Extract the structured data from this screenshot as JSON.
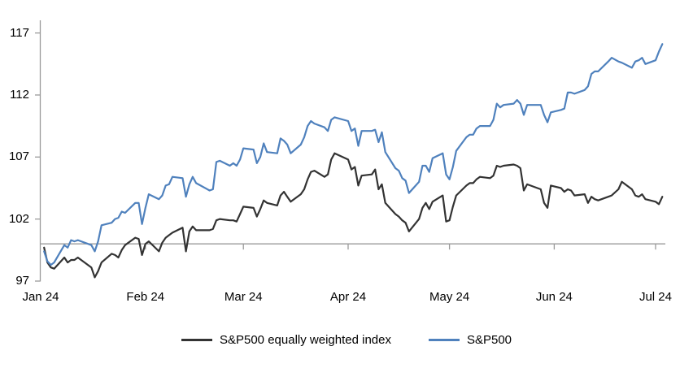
{
  "chart_data": {
    "type": "line",
    "title": "",
    "xlabel": "",
    "ylabel": "",
    "grid": false,
    "legend_position": "bottom-center",
    "axis_color": "#9a9a9a",
    "text_color": "#000000",
    "background_color": "#ffffff",
    "y_ticks": [
      97,
      102,
      107,
      112,
      117
    ],
    "ylim": [
      97,
      118
    ],
    "baseline_value": 100,
    "x_tick_labels": [
      "Jan 24",
      "Feb 24",
      "Mar 24",
      "Apr 24",
      "May 24",
      "Jun 24",
      "Jul 24"
    ],
    "x_tick_dates": [
      "2024-01-01",
      "2024-02-01",
      "2024-03-01",
      "2024-04-01",
      "2024-05-01",
      "2024-06-01",
      "2024-07-01"
    ],
    "x": [
      "2024-01-02",
      "2024-01-03",
      "2024-01-04",
      "2024-01-05",
      "2024-01-08",
      "2024-01-09",
      "2024-01-10",
      "2024-01-11",
      "2024-01-12",
      "2024-01-16",
      "2024-01-17",
      "2024-01-18",
      "2024-01-19",
      "2024-01-22",
      "2024-01-23",
      "2024-01-24",
      "2024-01-25",
      "2024-01-26",
      "2024-01-29",
      "2024-01-30",
      "2024-01-31",
      "2024-02-01",
      "2024-02-02",
      "2024-02-05",
      "2024-02-06",
      "2024-02-07",
      "2024-02-08",
      "2024-02-09",
      "2024-02-12",
      "2024-02-13",
      "2024-02-14",
      "2024-02-15",
      "2024-02-16",
      "2024-02-20",
      "2024-02-21",
      "2024-02-22",
      "2024-02-23",
      "2024-02-26",
      "2024-02-27",
      "2024-02-28",
      "2024-02-29",
      "2024-03-01",
      "2024-03-04",
      "2024-03-05",
      "2024-03-06",
      "2024-03-07",
      "2024-03-08",
      "2024-03-11",
      "2024-03-12",
      "2024-03-13",
      "2024-03-14",
      "2024-03-15",
      "2024-03-18",
      "2024-03-19",
      "2024-03-20",
      "2024-03-21",
      "2024-03-22",
      "2024-03-25",
      "2024-03-26",
      "2024-03-27",
      "2024-03-28",
      "2024-04-01",
      "2024-04-02",
      "2024-04-03",
      "2024-04-04",
      "2024-04-05",
      "2024-04-08",
      "2024-04-09",
      "2024-04-10",
      "2024-04-11",
      "2024-04-12",
      "2024-04-15",
      "2024-04-16",
      "2024-04-17",
      "2024-04-18",
      "2024-04-19",
      "2024-04-22",
      "2024-04-23",
      "2024-04-24",
      "2024-04-25",
      "2024-04-26",
      "2024-04-29",
      "2024-04-30",
      "2024-05-01",
      "2024-05-02",
      "2024-05-03",
      "2024-05-06",
      "2024-05-07",
      "2024-05-08",
      "2024-05-09",
      "2024-05-10",
      "2024-05-13",
      "2024-05-14",
      "2024-05-15",
      "2024-05-16",
      "2024-05-17",
      "2024-05-20",
      "2024-05-21",
      "2024-05-22",
      "2024-05-23",
      "2024-05-24",
      "2024-05-28",
      "2024-05-29",
      "2024-05-30",
      "2024-05-31",
      "2024-06-03",
      "2024-06-04",
      "2024-06-05",
      "2024-06-06",
      "2024-06-07",
      "2024-06-10",
      "2024-06-11",
      "2024-06-12",
      "2024-06-13",
      "2024-06-14",
      "2024-06-17",
      "2024-06-18",
      "2024-06-20",
      "2024-06-21",
      "2024-06-24",
      "2024-06-25",
      "2024-06-26",
      "2024-06-27",
      "2024-06-28",
      "2024-07-01",
      "2024-07-02",
      "2024-07-03"
    ],
    "series": [
      {
        "name": "S&P500 equally weighted index",
        "color": "#333333",
        "values": [
          99.7,
          98.5,
          98.1,
          98.0,
          98.9,
          98.5,
          98.7,
          98.7,
          98.9,
          98.1,
          97.3,
          97.8,
          98.5,
          99.2,
          99.1,
          98.9,
          99.5,
          99.9,
          100.5,
          100.4,
          99.1,
          100.0,
          100.2,
          99.4,
          100.1,
          100.5,
          100.7,
          100.9,
          101.3,
          99.4,
          101.0,
          101.4,
          101.1,
          101.1,
          101.2,
          101.9,
          102.0,
          101.9,
          101.9,
          101.8,
          102.4,
          103.0,
          102.9,
          102.2,
          102.8,
          103.5,
          103.3,
          103.1,
          103.9,
          104.2,
          103.8,
          103.4,
          104.0,
          104.4,
          105.2,
          105.8,
          105.9,
          105.4,
          105.6,
          106.8,
          107.3,
          106.8,
          106.0,
          106.2,
          104.7,
          105.5,
          105.6,
          106.0,
          104.4,
          104.8,
          103.3,
          102.4,
          102.2,
          101.9,
          101.7,
          101.0,
          102.0,
          102.9,
          103.3,
          102.8,
          103.4,
          103.9,
          101.8,
          101.9,
          103.0,
          103.9,
          104.7,
          104.9,
          104.9,
          105.2,
          105.4,
          105.3,
          105.5,
          106.3,
          106.2,
          106.3,
          106.4,
          106.3,
          106.1,
          104.3,
          104.8,
          104.4,
          103.3,
          102.9,
          104.7,
          104.5,
          104.2,
          104.4,
          104.3,
          103.9,
          104.0,
          103.3,
          103.8,
          103.6,
          103.5,
          103.8,
          103.9,
          104.4,
          105.0,
          104.4,
          103.9,
          103.8,
          104.0,
          103.6,
          103.4,
          103.2,
          103.8
        ]
      },
      {
        "name": "S&P500",
        "color": "#4f81bd",
        "values": [
          99.4,
          98.6,
          98.3,
          98.5,
          99.9,
          99.7,
          100.3,
          100.2,
          100.3,
          99.9,
          99.4,
          100.2,
          101.5,
          101.7,
          102.0,
          102.1,
          102.6,
          102.5,
          103.3,
          103.3,
          101.6,
          102.9,
          104.0,
          103.6,
          103.9,
          104.7,
          104.8,
          105.4,
          105.3,
          103.8,
          104.8,
          105.4,
          104.9,
          104.3,
          104.4,
          106.6,
          106.7,
          106.3,
          106.5,
          106.3,
          106.8,
          107.7,
          107.6,
          106.5,
          107.0,
          108.1,
          107.4,
          107.3,
          108.5,
          108.3,
          108.0,
          107.3,
          108.0,
          108.6,
          109.5,
          109.9,
          109.7,
          109.4,
          109.1,
          110.0,
          110.2,
          109.9,
          109.1,
          109.3,
          107.9,
          109.1,
          109.1,
          109.2,
          108.2,
          109.0,
          107.4,
          106.1,
          105.9,
          105.3,
          105.1,
          104.1,
          105.0,
          106.3,
          106.3,
          105.8,
          106.9,
          107.3,
          105.6,
          105.2,
          106.2,
          107.5,
          108.6,
          108.8,
          108.8,
          109.3,
          109.5,
          109.5,
          110.0,
          111.3,
          111.0,
          111.2,
          111.3,
          111.6,
          111.3,
          110.4,
          111.2,
          111.2,
          110.4,
          109.8,
          110.6,
          110.8,
          110.9,
          112.2,
          112.2,
          112.1,
          112.4,
          112.7,
          113.7,
          113.9,
          113.9,
          114.7,
          115.0,
          114.7,
          114.6,
          114.2,
          114.7,
          114.8,
          115.0,
          114.5,
          114.8,
          115.5,
          116.1
        ]
      }
    ]
  },
  "legend": {
    "items": [
      {
        "label": "S&P500 equally weighted index",
        "color": "#333333"
      },
      {
        "label": "S&P500",
        "color": "#4f81bd"
      }
    ]
  }
}
